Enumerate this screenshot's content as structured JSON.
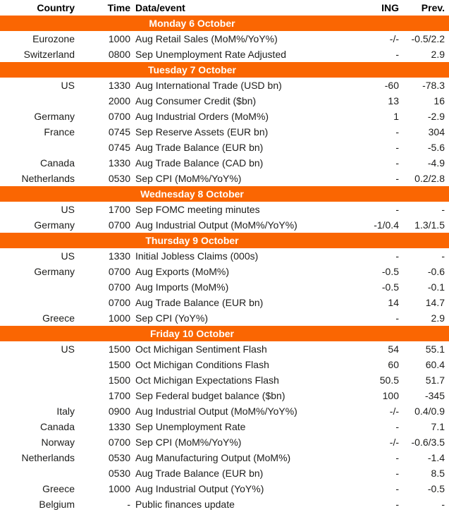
{
  "colors": {
    "accent_orange": "#FA6602",
    "section_text": "#FFFFFF",
    "body_text": "#1D1D1B"
  },
  "header": {
    "columns": [
      "Country",
      "Time",
      "Data/event",
      "ING",
      "Prev."
    ]
  },
  "sections": [
    {
      "title": "Monday 6 October",
      "rows": [
        {
          "country": "Eurozone",
          "time": "1000",
          "event": "Aug Retail Sales (MoM%/YoY%)",
          "ing": "-/-",
          "prev": "-0.5/2.2"
        },
        {
          "country": "Switzerland",
          "time": "0800",
          "event": "Sep Unemployment Rate Adjusted",
          "ing": "-",
          "prev": "2.9"
        }
      ]
    },
    {
      "title": "Tuesday 7 October",
      "rows": [
        {
          "country": "US",
          "time": "1330",
          "event": "Aug International Trade (USD bn)",
          "ing": "-60",
          "prev": "-78.3"
        },
        {
          "country": "",
          "time": "2000",
          "event": "Aug Consumer Credit ($bn)",
          "ing": "13",
          "prev": "16"
        },
        {
          "country": "Germany",
          "time": "0700",
          "event": "Aug Industrial Orders (MoM%)",
          "ing": "1",
          "prev": "-2.9"
        },
        {
          "country": "France",
          "time": "0745",
          "event": "Sep Reserve Assets (EUR bn)",
          "ing": "-",
          "prev": "304"
        },
        {
          "country": "",
          "time": "0745",
          "event": "Aug Trade Balance (EUR bn)",
          "ing": "-",
          "prev": "-5.6"
        },
        {
          "country": "Canada",
          "time": "1330",
          "event": "Aug Trade Balance (CAD bn)",
          "ing": "-",
          "prev": "-4.9"
        },
        {
          "country": "Netherlands",
          "time": "0530",
          "event": "Sep CPI (MoM%/YoY%)",
          "ing": "-",
          "prev": "0.2/2.8"
        }
      ]
    },
    {
      "title": "Wednesday 8 October",
      "rows": [
        {
          "country": "US",
          "time": "1700",
          "event": "Sep FOMC meeting minutes",
          "ing": "-",
          "prev": "-"
        },
        {
          "country": "Germany",
          "time": "0700",
          "event": "Aug Industrial Output (MoM%/YoY%)",
          "ing": "-1/0.4",
          "prev": "1.3/1.5"
        }
      ]
    },
    {
      "title": "Thursday 9 October",
      "rows": [
        {
          "country": "US",
          "time": "1330",
          "event": "Initial Jobless Claims (000s)",
          "ing": "-",
          "prev": "-"
        },
        {
          "country": "Germany",
          "time": "0700",
          "event": "Aug Exports (MoM%)",
          "ing": "-0.5",
          "prev": "-0.6"
        },
        {
          "country": "",
          "time": "0700",
          "event": "Aug Imports (MoM%)",
          "ing": "-0.5",
          "prev": "-0.1"
        },
        {
          "country": "",
          "time": "0700",
          "event": "Aug Trade Balance (EUR bn)",
          "ing": "14",
          "prev": "14.7"
        },
        {
          "country": "Greece",
          "time": "1000",
          "event": "Sep CPI (YoY%)",
          "ing": "-",
          "prev": "2.9"
        }
      ]
    },
    {
      "title": "Friday 10 October",
      "rows": [
        {
          "country": "US",
          "time": "1500",
          "event": "Oct Michigan Sentiment Flash",
          "ing": "54",
          "prev": "55.1"
        },
        {
          "country": "",
          "time": "1500",
          "event": "Oct Michigan Conditions Flash",
          "ing": "60",
          "prev": "60.4"
        },
        {
          "country": "",
          "time": "1500",
          "event": "Oct Michigan Expectations Flash",
          "ing": "50.5",
          "prev": "51.7"
        },
        {
          "country": "",
          "time": "1700",
          "event": "Sep Federal budget balance ($bn)",
          "ing": "100",
          "prev": "-345"
        },
        {
          "country": "Italy",
          "time": "0900",
          "event": "Aug Industrial Output (MoM%/YoY%)",
          "ing": "-/-",
          "prev": "0.4/0.9"
        },
        {
          "country": "Canada",
          "time": "1330",
          "event": "Sep Unemployment Rate",
          "ing": "-",
          "prev": "7.1"
        },
        {
          "country": "Norway",
          "time": "0700",
          "event": "Sep CPI (MoM%/YoY%)",
          "ing": "-/-",
          "prev": "-0.6/3.5"
        },
        {
          "country": "Netherlands",
          "time": "0530",
          "event": "Aug Manufacturing Output (MoM%)",
          "ing": "-",
          "prev": "-1.4"
        },
        {
          "country": "",
          "time": "0530",
          "event": "Aug Trade Balance (EUR bn)",
          "ing": "-",
          "prev": "8.5"
        },
        {
          "country": "Greece",
          "time": "1000",
          "event": "Aug Industrial Output (YoY%)",
          "ing": "-",
          "prev": "-0.5"
        },
        {
          "country": "Belgium",
          "time": "-",
          "event": "Public finances update",
          "ing": "-",
          "prev": "-"
        }
      ]
    }
  ]
}
